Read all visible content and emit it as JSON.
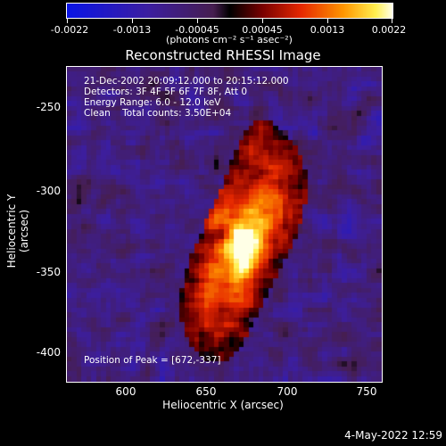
{
  "colorbar": {
    "tick_labels": [
      "-0.0022",
      "-0.0013",
      "-0.00045",
      "0.00045",
      "0.0013",
      "0.0022"
    ],
    "units": "(photons cm⁻² s⁻¹ asec⁻²)"
  },
  "plot": {
    "title": "Reconstructed RHESSI Image",
    "info_lines": [
      "21-Dec-2002 20:09:12.000 to 20:15:12.000",
      "Detectors: 3F 4F 5F 6F 7F 8F, Att 0",
      "Energy Range: 6.0 - 12.0 keV",
      "Clean    Total counts: 3.50E+04"
    ],
    "peak_label": "Position of Peak = [672,-337]",
    "xlabel": "Heliocentric X (arcsec)",
    "ylabel": "Heliocentric Y (arcsec)",
    "xticks": [
      "600",
      "650",
      "700",
      "750"
    ],
    "yticks": [
      "-250",
      "-300",
      "-350",
      "-400"
    ]
  },
  "timestamp": "4-May-2022 12:59"
}
